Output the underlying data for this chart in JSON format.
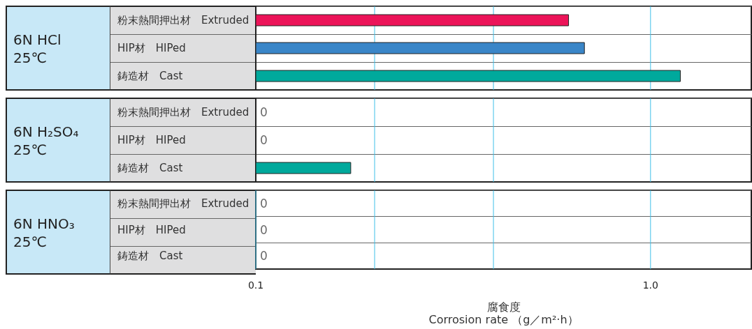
{
  "chart_data": [
    {
      "type": "bar",
      "orientation": "horizontal",
      "log": "x",
      "title": "6N HCl 25℃",
      "categories": [
        "粉末熱間押出材　Extruded",
        "HIP材　HIPed",
        "鋳造材　Cast"
      ],
      "values": [
        0.62,
        0.68,
        1.19
      ],
      "colors": [
        "#ec1459",
        "#3a86c8",
        "#00a99c"
      ],
      "xlim": [
        0.1,
        1.8
      ],
      "xticks": [
        0.2,
        0.4,
        1
      ],
      "grid": "x",
      "tick_labels": "y"
    },
    {
      "type": "bar",
      "orientation": "horizontal",
      "log": "x",
      "title": "6N H₂SO₄ 25℃",
      "categories": [
        "粉末熱間押出材　Extruded",
        "HIP材　HIPed",
        "鋳造材　Cast"
      ],
      "values": [
        null,
        null,
        0.174
      ],
      "value_labels": [
        "0",
        "0",
        null
      ],
      "colors": [
        null,
        null,
        "#00a99c"
      ],
      "xlim": [
        0.1,
        1.8
      ],
      "xticks": [
        0.2,
        0.4,
        1
      ],
      "grid": "x",
      "tick_labels": "y"
    },
    {
      "type": "bar",
      "orientation": "horizontal",
      "log": "x",
      "title": "6N HNO₃ 25℃",
      "xlabel": "腐食度\nCorrosion rate （g／m²·h）",
      "categories": [
        "粉末熱間押出材　Extruded",
        "HIP材　HIPed",
        "鋳造材　Cast"
      ],
      "values": [
        null,
        null,
        null
      ],
      "value_labels": [
        "0",
        "0",
        "0"
      ],
      "xlim": [
        0.1,
        1.8
      ],
      "xticks": [
        0.1,
        {
          "value": 0.2,
          "label": null
        },
        {
          "value": 0.4,
          "label": null
        },
        {
          "value": 1,
          "label": "1.0"
        }
      ],
      "grid": "x"
    }
  ]
}
